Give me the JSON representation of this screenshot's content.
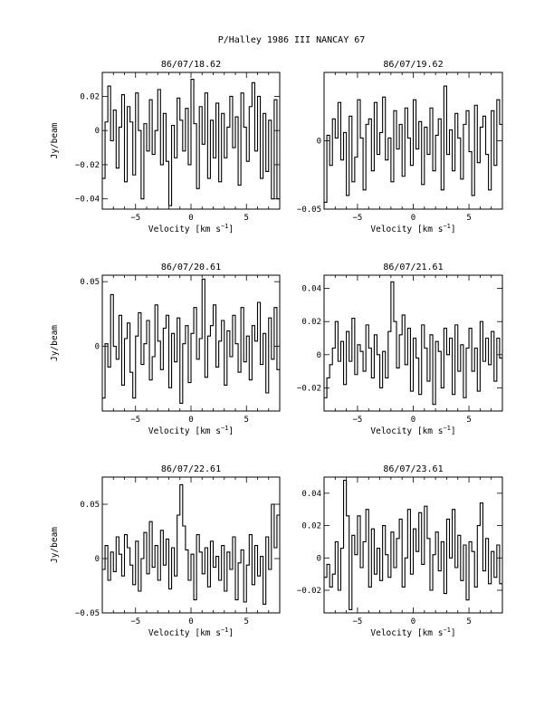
{
  "figure": {
    "title": "P/Halley 1986 III   NANCAY     67"
  },
  "chart_data": [
    {
      "type": "line",
      "title": "86/07/18.62",
      "xlabel": "Velocity [km s",
      "xlabel_sup": "−1",
      "xlabel_close": "]",
      "ylabel": "Jy/beam",
      "xlim": [
        -8,
        8
      ],
      "ylim": [
        -0.046,
        0.034
      ],
      "xticks": [
        -5,
        0,
        5
      ],
      "xtick_labels": [
        "−5",
        "0",
        "5"
      ],
      "yticks": [
        0.02,
        0,
        -0.02,
        -0.04
      ],
      "ytick_labels": [
        "0.02",
        "0",
        "−0.02",
        "−0.04"
      ],
      "grid": false,
      "step": true,
      "x": [
        -8.0,
        -7.75,
        -7.5,
        -7.25,
        -7.0,
        -6.75,
        -6.5,
        -6.25,
        -6.0,
        -5.75,
        -5.5,
        -5.25,
        -5.0,
        -4.75,
        -4.5,
        -4.25,
        -4.0,
        -3.75,
        -3.5,
        -3.25,
        -3.0,
        -2.75,
        -2.5,
        -2.25,
        -2.0,
        -1.75,
        -1.5,
        -1.25,
        -1.0,
        -0.75,
        -0.5,
        -0.25,
        0.0,
        0.25,
        0.5,
        0.75,
        1.0,
        1.25,
        1.5,
        1.75,
        2.0,
        2.25,
        2.5,
        2.75,
        3.0,
        3.25,
        3.5,
        3.75,
        4.0,
        4.25,
        4.5,
        4.75,
        5.0,
        5.25,
        5.5,
        5.75,
        6.0,
        6.25,
        6.5,
        6.75,
        7.0,
        7.25,
        7.5,
        7.75
      ],
      "y": [
        -0.028,
        0.005,
        0.026,
        -0.006,
        0.012,
        -0.022,
        0.002,
        0.021,
        -0.03,
        0.014,
        0.005,
        -0.026,
        0.022,
        0.0,
        -0.04,
        0.004,
        -0.012,
        0.018,
        -0.014,
        0.0,
        0.024,
        -0.02,
        0.01,
        -0.018,
        -0.044,
        0.003,
        -0.016,
        0.019,
        0.006,
        -0.012,
        0.013,
        -0.02,
        0.03,
        0.004,
        -0.034,
        0.014,
        -0.008,
        0.022,
        -0.028,
        0.006,
        -0.016,
        0.016,
        -0.03,
        0.01,
        -0.016,
        0.002,
        0.02,
        -0.01,
        0.008,
        -0.032,
        0.022,
        0.002,
        -0.018,
        0.014,
        0.028,
        -0.012,
        0.02,
        -0.028,
        0.01,
        -0.024,
        0.006,
        -0.04,
        0.018,
        -0.04
      ]
    },
    {
      "type": "line",
      "title": "86/07/19.62",
      "xlabel": "Velocity [km s",
      "xlabel_sup": "−1",
      "xlabel_close": "]",
      "ylabel": "",
      "xlim": [
        -8,
        8
      ],
      "ylim": [
        -0.05,
        0.05
      ],
      "xticks": [
        -5,
        0,
        5
      ],
      "xtick_labels": [
        "−5",
        "0",
        "5"
      ],
      "yticks": [
        0,
        -0.05
      ],
      "ytick_labels": [
        "0",
        "−0.05"
      ],
      "grid": false,
      "step": true,
      "x": [
        -8.0,
        -7.75,
        -7.5,
        -7.25,
        -7.0,
        -6.75,
        -6.5,
        -6.25,
        -6.0,
        -5.75,
        -5.5,
        -5.25,
        -5.0,
        -4.75,
        -4.5,
        -4.25,
        -4.0,
        -3.75,
        -3.5,
        -3.25,
        -3.0,
        -2.75,
        -2.5,
        -2.25,
        -2.0,
        -1.75,
        -1.5,
        -1.25,
        -1.0,
        -0.75,
        -0.5,
        -0.25,
        0.0,
        0.25,
        0.5,
        0.75,
        1.0,
        1.25,
        1.5,
        1.75,
        2.0,
        2.25,
        2.5,
        2.75,
        3.0,
        3.25,
        3.5,
        3.75,
        4.0,
        4.25,
        4.5,
        4.75,
        5.0,
        5.25,
        5.5,
        5.75,
        6.0,
        6.25,
        6.5,
        6.75,
        7.0,
        7.25,
        7.5,
        7.75
      ],
      "y": [
        -0.045,
        0.004,
        -0.018,
        0.016,
        0.002,
        0.028,
        -0.014,
        0.006,
        -0.04,
        0.018,
        -0.03,
        -0.012,
        0.03,
        0.002,
        -0.036,
        0.012,
        0.016,
        -0.022,
        0.028,
        -0.01,
        0.006,
        0.032,
        -0.014,
        0.002,
        -0.03,
        0.022,
        -0.006,
        0.012,
        -0.026,
        0.024,
        0.002,
        -0.018,
        0.03,
        -0.006,
        0.014,
        -0.032,
        0.01,
        -0.01,
        0.024,
        -0.022,
        0.004,
        0.016,
        -0.036,
        0.04,
        -0.01,
        0.008,
        -0.022,
        0.02,
        0.002,
        -0.028,
        0.012,
        0.022,
        -0.008,
        -0.04,
        0.026,
        -0.016,
        0.01,
        0.018,
        -0.01,
        -0.036,
        0.022,
        -0.018,
        0.03,
        0.012
      ]
    },
    {
      "type": "line",
      "title": "86/07/20.61",
      "xlabel": "Velocity [km s",
      "xlabel_sup": "−1",
      "xlabel_close": "]",
      "ylabel": "Jy/beam",
      "xlim": [
        -8,
        8
      ],
      "ylim": [
        -0.05,
        0.055
      ],
      "xticks": [
        -5,
        0,
        5
      ],
      "xtick_labels": [
        "−5",
        "0",
        "5"
      ],
      "yticks": [
        0.05,
        0
      ],
      "ytick_labels": [
        "0.05",
        "0"
      ],
      "grid": false,
      "step": true,
      "x": [
        -8.0,
        -7.75,
        -7.5,
        -7.25,
        -7.0,
        -6.75,
        -6.5,
        -6.25,
        -6.0,
        -5.75,
        -5.5,
        -5.25,
        -5.0,
        -4.75,
        -4.5,
        -4.25,
        -4.0,
        -3.75,
        -3.5,
        -3.25,
        -3.0,
        -2.75,
        -2.5,
        -2.25,
        -2.0,
        -1.75,
        -1.5,
        -1.25,
        -1.0,
        -0.75,
        -0.5,
        -0.25,
        0.0,
        0.25,
        0.5,
        0.75,
        1.0,
        1.25,
        1.5,
        1.75,
        2.0,
        2.25,
        2.5,
        2.75,
        3.0,
        3.25,
        3.5,
        3.75,
        4.0,
        4.25,
        4.5,
        4.75,
        5.0,
        5.25,
        5.5,
        5.75,
        6.0,
        6.25,
        6.5,
        6.75,
        7.0,
        7.25,
        7.5,
        7.75
      ],
      "y": [
        -0.04,
        0.002,
        -0.016,
        0.04,
        0.0,
        -0.01,
        0.024,
        -0.03,
        0.006,
        0.018,
        -0.02,
        -0.04,
        0.008,
        0.026,
        -0.014,
        0.002,
        0.02,
        -0.026,
        -0.008,
        0.032,
        0.004,
        -0.018,
        0.014,
        0.024,
        -0.032,
        0.01,
        -0.012,
        0.022,
        -0.044,
        0.002,
        0.016,
        -0.028,
        0.01,
        0.03,
        -0.01,
        0.006,
        0.052,
        -0.024,
        0.008,
        0.016,
        0.032,
        -0.016,
        0.004,
        0.02,
        -0.03,
        0.012,
        -0.008,
        0.024,
        0.002,
        -0.02,
        0.03,
        -0.012,
        0.008,
        -0.026,
        0.016,
        0.004,
        0.034,
        -0.014,
        0.01,
        -0.036,
        0.022,
        -0.01,
        0.03,
        -0.018
      ]
    },
    {
      "type": "line",
      "title": "86/07/21.61",
      "xlabel": "Velocity [km s",
      "xlabel_sup": "−1",
      "xlabel_close": "]",
      "ylabel": "",
      "xlim": [
        -8,
        8
      ],
      "ylim": [
        -0.034,
        0.048
      ],
      "xticks": [
        -5,
        0,
        5
      ],
      "xtick_labels": [
        "−5",
        "0",
        "5"
      ],
      "yticks": [
        0.04,
        0.02,
        0,
        -0.02
      ],
      "ytick_labels": [
        "0.04",
        "0.02",
        "0",
        "−0.02"
      ],
      "grid": false,
      "step": true,
      "x": [
        -8.0,
        -7.75,
        -7.5,
        -7.25,
        -7.0,
        -6.75,
        -6.5,
        -6.25,
        -6.0,
        -5.75,
        -5.5,
        -5.25,
        -5.0,
        -4.75,
        -4.5,
        -4.25,
        -4.0,
        -3.75,
        -3.5,
        -3.25,
        -3.0,
        -2.75,
        -2.5,
        -2.25,
        -2.0,
        -1.75,
        -1.5,
        -1.25,
        -1.0,
        -0.75,
        -0.5,
        -0.25,
        0.0,
        0.25,
        0.5,
        0.75,
        1.0,
        1.25,
        1.5,
        1.75,
        2.0,
        2.25,
        2.5,
        2.75,
        3.0,
        3.25,
        3.5,
        3.75,
        4.0,
        4.25,
        4.5,
        4.75,
        5.0,
        5.25,
        5.5,
        5.75,
        6.0,
        6.25,
        6.5,
        6.75,
        7.0,
        7.25,
        7.5,
        7.75
      ],
      "y": [
        -0.026,
        -0.014,
        -0.006,
        0.004,
        0.02,
        -0.004,
        0.008,
        -0.018,
        0.014,
        -0.004,
        0.022,
        -0.012,
        0.006,
        0.002,
        -0.01,
        0.018,
        0.004,
        -0.014,
        0.012,
        0.0,
        -0.02,
        0.002,
        -0.014,
        0.014,
        0.044,
        0.02,
        -0.008,
        0.012,
        0.024,
        -0.006,
        0.016,
        -0.022,
        0.01,
        -0.002,
        -0.024,
        0.018,
        0.004,
        -0.016,
        0.012,
        -0.03,
        0.008,
        0.002,
        -0.02,
        0.016,
        0.0,
        0.01,
        -0.024,
        0.018,
        -0.01,
        0.006,
        -0.026,
        0.004,
        0.016,
        -0.01,
        0.004,
        -0.022,
        0.02,
        -0.004,
        0.01,
        -0.006,
        0.014,
        -0.016,
        0.01,
        -0.002
      ]
    },
    {
      "type": "line",
      "title": "86/07/22.61",
      "xlabel": "Velocity [km s",
      "xlabel_sup": "−1",
      "xlabel_close": "]",
      "ylabel": "Jy/beam",
      "xlim": [
        -8,
        8
      ],
      "ylim": [
        -0.05,
        0.075
      ],
      "xticks": [
        -5,
        0,
        5
      ],
      "xtick_labels": [
        "−5",
        "0",
        "5"
      ],
      "yticks": [
        0.05,
        0,
        -0.05
      ],
      "ytick_labels": [
        "0.05",
        "0",
        "−0.05"
      ],
      "grid": false,
      "step": true,
      "x": [
        -8.0,
        -7.75,
        -7.5,
        -7.25,
        -7.0,
        -6.75,
        -6.5,
        -6.25,
        -6.0,
        -5.75,
        -5.5,
        -5.25,
        -5.0,
        -4.75,
        -4.5,
        -4.25,
        -4.0,
        -3.75,
        -3.5,
        -3.25,
        -3.0,
        -2.75,
        -2.5,
        -2.25,
        -2.0,
        -1.75,
        -1.5,
        -1.25,
        -1.0,
        -0.75,
        -0.5,
        -0.25,
        0.0,
        0.25,
        0.5,
        0.75,
        1.0,
        1.25,
        1.5,
        1.75,
        2.0,
        2.25,
        2.5,
        2.75,
        3.0,
        3.25,
        3.5,
        3.75,
        4.0,
        4.25,
        4.5,
        4.75,
        5.0,
        5.25,
        5.5,
        5.75,
        6.0,
        6.25,
        6.5,
        6.75,
        7.0,
        7.25,
        7.5,
        7.75
      ],
      "y": [
        -0.01,
        0.012,
        -0.02,
        0.006,
        -0.012,
        0.02,
        0.004,
        -0.016,
        0.022,
        0.01,
        -0.006,
        -0.024,
        0.016,
        -0.03,
        0.0,
        0.024,
        -0.014,
        0.034,
        -0.008,
        0.012,
        -0.02,
        0.026,
        -0.006,
        0.018,
        -0.028,
        0.01,
        -0.016,
        0.04,
        0.068,
        0.03,
        0.008,
        -0.02,
        0.004,
        -0.038,
        0.022,
        0.006,
        -0.014,
        0.01,
        -0.026,
        0.016,
        -0.008,
        0.002,
        -0.02,
        0.012,
        -0.03,
        0.006,
        -0.01,
        0.02,
        -0.038,
        -0.004,
        0.008,
        -0.04,
        -0.006,
        0.022,
        -0.024,
        0.012,
        -0.016,
        0.002,
        -0.042,
        0.02,
        -0.01,
        0.05,
        0.01,
        0.04
      ]
    },
    {
      "type": "line",
      "title": "86/07/23.61",
      "xlabel": "Velocity [km s",
      "xlabel_sup": "−1",
      "xlabel_close": "]",
      "ylabel": "",
      "xlim": [
        -8,
        8
      ],
      "ylim": [
        -0.034,
        0.05
      ],
      "xticks": [
        -5,
        0,
        5
      ],
      "xtick_labels": [
        "−5",
        "0",
        "5"
      ],
      "yticks": [
        0.04,
        0.02,
        0,
        -0.02
      ],
      "ytick_labels": [
        "0.04",
        "0.02",
        "0",
        "−0.02"
      ],
      "grid": false,
      "step": true,
      "x": [
        -8.0,
        -7.75,
        -7.5,
        -7.25,
        -7.0,
        -6.75,
        -6.5,
        -6.25,
        -6.0,
        -5.75,
        -5.5,
        -5.25,
        -5.0,
        -4.75,
        -4.5,
        -4.25,
        -4.0,
        -3.75,
        -3.5,
        -3.25,
        -3.0,
        -2.75,
        -2.5,
        -2.25,
        -2.0,
        -1.75,
        -1.5,
        -1.25,
        -1.0,
        -0.75,
        -0.5,
        -0.25,
        0.0,
        0.25,
        0.5,
        0.75,
        1.0,
        1.25,
        1.5,
        1.75,
        2.0,
        2.25,
        2.5,
        2.75,
        3.0,
        3.25,
        3.5,
        3.75,
        4.0,
        4.25,
        4.5,
        4.75,
        5.0,
        5.25,
        5.5,
        5.75,
        6.0,
        6.25,
        6.5,
        6.75,
        7.0,
        7.25,
        7.5,
        7.75
      ],
      "y": [
        -0.012,
        -0.004,
        -0.018,
        -0.01,
        0.01,
        -0.02,
        0.006,
        0.048,
        0.026,
        -0.032,
        0.014,
        0.002,
        0.026,
        -0.006,
        0.01,
        0.03,
        -0.018,
        0.018,
        -0.01,
        0.006,
        -0.014,
        0.02,
        0.002,
        -0.012,
        0.016,
        -0.006,
        0.012,
        0.024,
        -0.018,
        0.0,
        0.03,
        -0.01,
        0.018,
        0.004,
        0.028,
        -0.004,
        0.032,
        0.012,
        -0.02,
        0.002,
        0.016,
        -0.008,
        0.01,
        -0.022,
        0.024,
        0.0,
        0.03,
        -0.006,
        0.014,
        -0.014,
        0.008,
        -0.026,
        0.01,
        0.004,
        -0.018,
        0.02,
        0.034,
        -0.008,
        0.012,
        -0.016,
        0.004,
        -0.012,
        0.008,
        -0.016
      ]
    }
  ]
}
